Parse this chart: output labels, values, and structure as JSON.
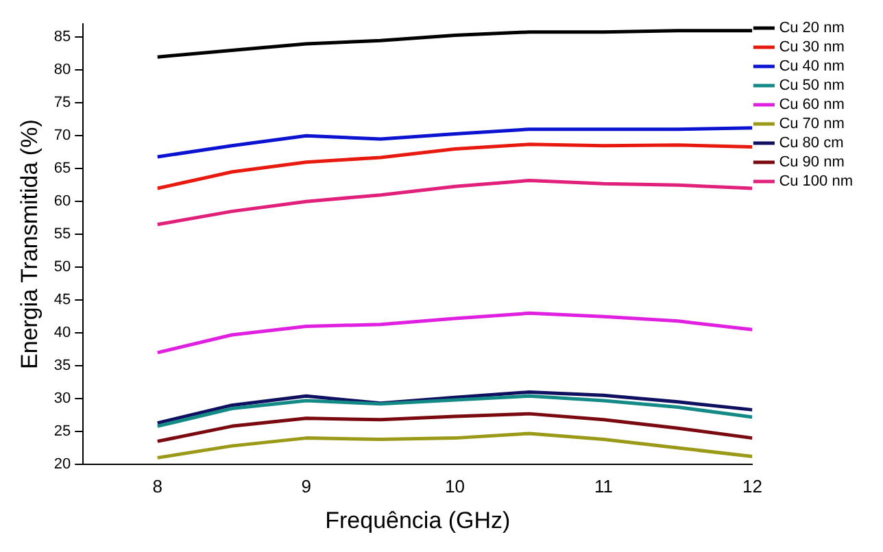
{
  "chart_data": {
    "type": "line",
    "xlabel": "Frequência (GHz)",
    "ylabel": "Energia Transmitida (%)",
    "x": [
      8,
      8.5,
      9,
      9.5,
      10,
      10.5,
      11,
      11.5,
      12
    ],
    "xlim": [
      7.5,
      12
    ],
    "xticks": [
      8,
      9,
      10,
      11,
      12
    ],
    "ylim": [
      20,
      87
    ],
    "yticks": [
      20,
      25,
      30,
      35,
      40,
      45,
      50,
      55,
      60,
      65,
      70,
      75,
      80,
      85
    ],
    "grid": false,
    "legend": "right",
    "series": [
      {
        "name": "Cu 20 nm",
        "color": "#000000",
        "values": [
          82,
          83,
          84,
          84.5,
          85.3,
          85.8,
          85.8,
          86,
          86
        ]
      },
      {
        "name": "Cu 30 nm",
        "color": "#e8190e",
        "values": [
          62,
          64.5,
          66,
          66.7,
          68,
          68.7,
          68.5,
          68.6,
          68.3
        ]
      },
      {
        "name": "Cu 40 nm",
        "color": "#0b12d0",
        "values": [
          66.8,
          68.5,
          70,
          69.5,
          70.3,
          71,
          71,
          71,
          71.2
        ]
      },
      {
        "name": "Cu 50 nm",
        "color": "#138a86",
        "values": [
          25.8,
          28.5,
          29.7,
          29.2,
          29.8,
          30.4,
          29.7,
          28.7,
          27.2
        ]
      },
      {
        "name": "Cu 60 nm",
        "color": "#e020e0",
        "values": [
          37,
          39.7,
          41,
          41.3,
          42.2,
          43,
          42.5,
          41.8,
          40.5
        ]
      },
      {
        "name": "Cu 70 nm",
        "color": "#9a9a18",
        "values": [
          21,
          22.8,
          24,
          23.8,
          24,
          24.7,
          23.8,
          22.5,
          21.2
        ]
      },
      {
        "name": "Cu 80 cm",
        "color": "#101060",
        "values": [
          26.3,
          29,
          30.4,
          29.3,
          30.2,
          31,
          30.5,
          29.5,
          28.3
        ]
      },
      {
        "name": "Cu 90 nm",
        "color": "#7a0a10",
        "values": [
          23.5,
          25.8,
          27,
          26.8,
          27.3,
          27.7,
          26.8,
          25.5,
          24
        ]
      },
      {
        "name": "Cu 100 nm",
        "color": "#e0207a",
        "values": [
          56.5,
          58.5,
          60,
          61,
          62.3,
          63.2,
          62.7,
          62.5,
          62
        ]
      }
    ]
  }
}
